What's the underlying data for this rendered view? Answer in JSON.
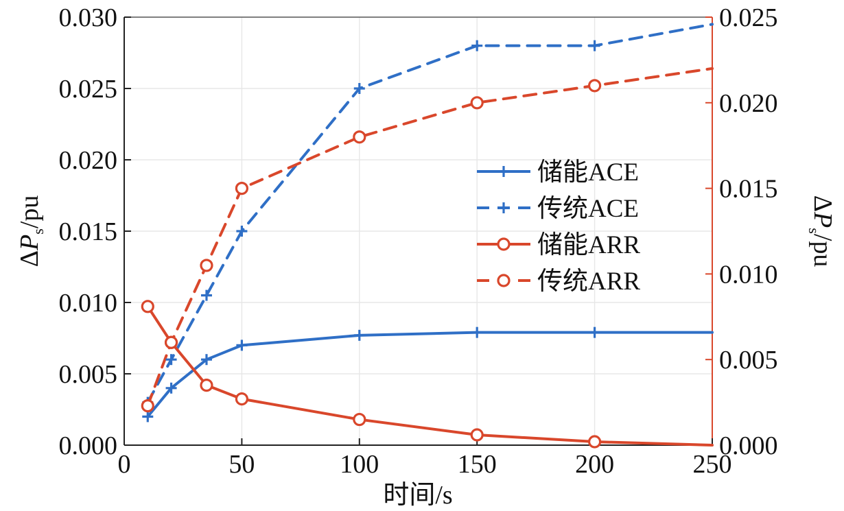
{
  "chart_data": {
    "type": "line",
    "xlabel": "时间/s",
    "ylabel_left": {
      "prefix": "Δ",
      "symbol": "P",
      "subscript": "s",
      "suffix": "/pu"
    },
    "ylabel_right": {
      "prefix": "Δ",
      "symbol": "P",
      "subscript": "s",
      "suffix": "/pu"
    },
    "xlim": [
      0,
      250
    ],
    "ylim_left": [
      0,
      0.03
    ],
    "ylim_right": [
      0,
      0.025
    ],
    "x_ticks": [
      "0",
      "50",
      "100",
      "150",
      "200",
      "250"
    ],
    "y_ticks_left": [
      "0.000",
      "0.005",
      "0.010",
      "0.015",
      "0.020",
      "0.025",
      "0.030"
    ],
    "y_ticks_right": [
      "0.000",
      "0.005",
      "0.010",
      "0.015",
      "0.020",
      "0.025"
    ],
    "grid": true,
    "legend_position": "center-right",
    "series": [
      {
        "name": "储能ACE",
        "axis": "left",
        "color": "#2F6FC6",
        "line_style": "solid",
        "marker": "plus",
        "x": [
          10,
          20,
          35,
          50,
          100,
          150,
          200,
          250
        ],
        "y": [
          0.002,
          0.004,
          0.006,
          0.007,
          0.0077,
          0.0079,
          0.0079,
          0.0079
        ]
      },
      {
        "name": "传统ACE",
        "axis": "left",
        "color": "#2F6FC6",
        "line_style": "dashed",
        "marker": "plus",
        "x": [
          10,
          20,
          35,
          50,
          100,
          150,
          200,
          250
        ],
        "y": [
          0.003,
          0.006,
          0.0105,
          0.015,
          0.025,
          0.028,
          0.028,
          0.0295
        ]
      },
      {
        "name": "储能ARR",
        "axis": "right",
        "color": "#D9472B",
        "line_style": "solid",
        "marker": "circle",
        "x": [
          10,
          20,
          35,
          50,
          100,
          150,
          200,
          250
        ],
        "y": [
          0.0081,
          0.006,
          0.0035,
          0.0027,
          0.0015,
          0.0006,
          0.0002,
          0.0
        ]
      },
      {
        "name": "传统ARR",
        "axis": "right",
        "color": "#D9472B",
        "line_style": "dashed",
        "marker": "circle",
        "x": [
          10,
          20,
          35,
          50,
          100,
          150,
          200,
          250
        ],
        "y": [
          0.0023,
          0.006,
          0.0105,
          0.015,
          0.018,
          0.02,
          0.021,
          0.022
        ]
      }
    ]
  }
}
